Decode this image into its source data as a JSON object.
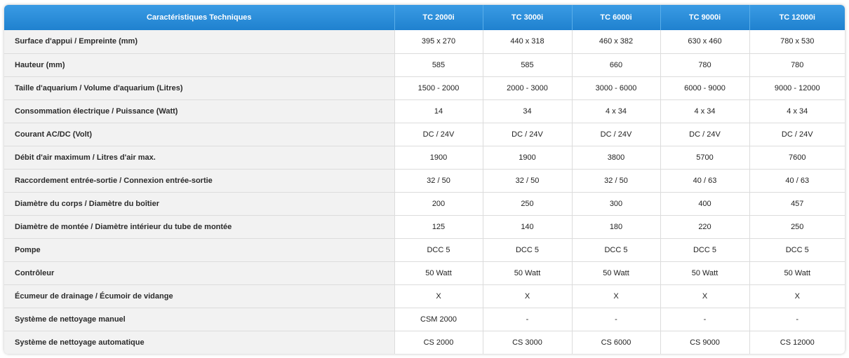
{
  "table": {
    "header": [
      "Caractéristiques Techniques",
      "TC 2000i",
      "TC 3000i",
      "TC 6000i",
      "TC 9000i",
      "TC 12000i"
    ],
    "rows": [
      [
        "Surface d'appui / Empreinte (mm)",
        "395 x 270",
        "440 x 318",
        "460 x 382",
        "630 x 460",
        "780 x 530"
      ],
      [
        "Hauteur (mm)",
        "585",
        "585",
        "660",
        "780",
        "780"
      ],
      [
        "Taille d'aquarium / Volume d'aquarium (Litres)",
        "1500 - 2000",
        "2000 - 3000",
        "3000 - 6000",
        "6000 - 9000",
        "9000 - 12000"
      ],
      [
        "Consommation électrique / Puissance (Watt)",
        "14",
        "34",
        "4 x 34",
        "4 x 34",
        "4 x 34"
      ],
      [
        "Courant AC/DC (Volt)",
        "DC / 24V",
        "DC / 24V",
        "DC / 24V",
        "DC / 24V",
        "DC / 24V"
      ],
      [
        "Débit d'air maximum / Litres d'air max.",
        "1900",
        "1900",
        "3800",
        "5700",
        "7600"
      ],
      [
        "Raccordement entrée-sortie / Connexion entrée-sortie",
        "32 / 50",
        "32 / 50",
        "32 / 50",
        "40 / 63",
        "40 / 63"
      ],
      [
        "Diamètre du corps / Diamètre du boîtier",
        "200",
        "250",
        "300",
        "400",
        "457"
      ],
      [
        "Diamètre de montée / Diamètre intérieur du tube de montée",
        "125",
        "140",
        "180",
        "220",
        "250"
      ],
      [
        "Pompe",
        "DCC 5",
        "DCC 5",
        "DCC 5",
        "DCC 5",
        "DCC 5"
      ],
      [
        "Contrôleur",
        "50 Watt",
        "50 Watt",
        "50 Watt",
        "50 Watt",
        "50 Watt"
      ],
      [
        "Écumeur de drainage / Écumoir de vidange",
        "X",
        "X",
        "X",
        "X",
        "X"
      ],
      [
        "Système de nettoyage manuel",
        "CSM 2000",
        "-",
        "-",
        "-",
        "-"
      ],
      [
        "Système de nettoyage automatique",
        "CS 2000",
        "CS 3000",
        "CS 6000",
        "CS 9000",
        "CS 12000"
      ]
    ]
  },
  "colors": {
    "header_bg": "#2a8ddb",
    "header_text": "#ffffff",
    "label_bg": "#f2f2f2",
    "border": "#dcdcdc"
  }
}
